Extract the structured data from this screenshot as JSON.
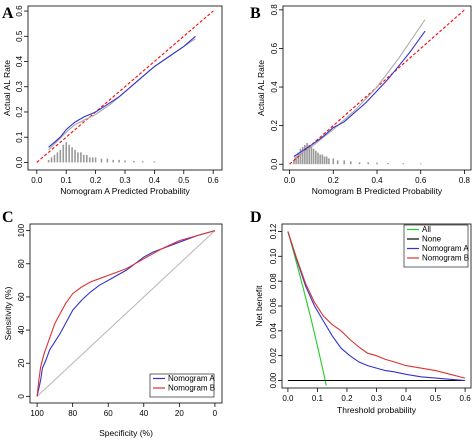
{
  "chart_data": [
    {
      "panel": "A",
      "type": "line",
      "xlabel": "Nomogram A Predicted Probability",
      "ylabel": "Actual AL Rate",
      "xlim": [
        -0.03,
        0.63
      ],
      "ylim": [
        -0.03,
        0.62
      ],
      "xticks": [
        0.0,
        0.1,
        0.2,
        0.3,
        0.4,
        0.5,
        0.6
      ],
      "yticks": [
        0.0,
        0.1,
        0.2,
        0.3,
        0.4,
        0.5,
        0.6
      ],
      "tick_labels_x": [
        "0.0",
        "0.1",
        "0.2",
        "0.3",
        "0.4",
        "0.5",
        "0.6"
      ],
      "tick_labels_y": [
        "0.0",
        "0.1",
        "0.2",
        "0.3",
        "0.4",
        "0.5",
        "0.6"
      ],
      "series": [
        {
          "role": "ideal",
          "color": "#ff0000",
          "dash": true,
          "x": [
            0.0,
            0.6
          ],
          "y": [
            0.0,
            0.6
          ]
        },
        {
          "role": "apparent",
          "color": "#aaaaaa",
          "x": [
            0.04,
            0.1,
            0.13,
            0.2,
            0.25,
            0.3,
            0.4,
            0.5,
            0.54
          ],
          "y": [
            0.05,
            0.12,
            0.15,
            0.19,
            0.23,
            0.28,
            0.38,
            0.46,
            0.49
          ]
        },
        {
          "role": "bias-corrected",
          "color": "#3333cc",
          "x": [
            0.04,
            0.08,
            0.1,
            0.13,
            0.16,
            0.2,
            0.24,
            0.28,
            0.32,
            0.36,
            0.4,
            0.45,
            0.5,
            0.54
          ],
          "y": [
            0.06,
            0.1,
            0.13,
            0.16,
            0.18,
            0.2,
            0.23,
            0.26,
            0.3,
            0.34,
            0.38,
            0.42,
            0.46,
            0.5
          ]
        }
      ],
      "rug": {
        "x": [
          0.04,
          0.05,
          0.06,
          0.07,
          0.08,
          0.09,
          0.1,
          0.11,
          0.12,
          0.13,
          0.14,
          0.15,
          0.16,
          0.17,
          0.18,
          0.19,
          0.2,
          0.22,
          0.24,
          0.26,
          0.28,
          0.3,
          0.33,
          0.36,
          0.4
        ],
        "h": [
          0.01,
          0.02,
          0.03,
          0.04,
          0.05,
          0.07,
          0.08,
          0.07,
          0.06,
          0.05,
          0.04,
          0.04,
          0.03,
          0.03,
          0.02,
          0.02,
          0.02,
          0.015,
          0.015,
          0.01,
          0.01,
          0.008,
          0.006,
          0.005,
          0.004
        ],
        "color": "#999999"
      }
    },
    {
      "panel": "B",
      "type": "line",
      "xlabel": "Nomogram B Predicted Probability",
      "ylabel": "Actual AL Rate",
      "xlim": [
        -0.03,
        0.83
      ],
      "ylim": [
        -0.03,
        0.82
      ],
      "xticks": [
        0.0,
        0.2,
        0.4,
        0.6,
        0.8
      ],
      "yticks": [
        0.0,
        0.2,
        0.4,
        0.6,
        0.8
      ],
      "tick_labels_x": [
        "0.0",
        "0.2",
        "0.4",
        "0.6",
        "0.8"
      ],
      "tick_labels_y": [
        "0.0",
        "0.2",
        "0.4",
        "0.6",
        "0.8"
      ],
      "series": [
        {
          "role": "ideal",
          "color": "#ff0000",
          "dash": true,
          "x": [
            0.0,
            0.8
          ],
          "y": [
            0.0,
            0.8
          ]
        },
        {
          "role": "apparent",
          "color": "#aaaaaa",
          "x": [
            0.02,
            0.1,
            0.2,
            0.3,
            0.4,
            0.5,
            0.62
          ],
          "y": [
            0.03,
            0.09,
            0.18,
            0.28,
            0.4,
            0.55,
            0.75
          ]
        },
        {
          "role": "bias-corrected",
          "color": "#3333cc",
          "x": [
            0.02,
            0.06,
            0.1,
            0.15,
            0.2,
            0.25,
            0.3,
            0.35,
            0.4,
            0.45,
            0.5,
            0.55,
            0.62
          ],
          "y": [
            0.04,
            0.07,
            0.1,
            0.14,
            0.19,
            0.22,
            0.27,
            0.32,
            0.38,
            0.44,
            0.51,
            0.58,
            0.69
          ]
        }
      ],
      "rug": {
        "x": [
          0.02,
          0.03,
          0.04,
          0.05,
          0.06,
          0.07,
          0.08,
          0.09,
          0.1,
          0.11,
          0.12,
          0.13,
          0.14,
          0.15,
          0.16,
          0.17,
          0.18,
          0.2,
          0.22,
          0.25,
          0.28,
          0.32,
          0.36,
          0.4,
          0.45,
          0.52,
          0.6
        ],
        "h": [
          0.02,
          0.04,
          0.06,
          0.08,
          0.09,
          0.1,
          0.11,
          0.1,
          0.09,
          0.08,
          0.07,
          0.06,
          0.05,
          0.05,
          0.04,
          0.04,
          0.03,
          0.03,
          0.02,
          0.02,
          0.015,
          0.01,
          0.01,
          0.008,
          0.006,
          0.005,
          0.004
        ],
        "color": "#999999"
      }
    },
    {
      "panel": "C",
      "type": "line",
      "xlabel": "Specificity (%)",
      "ylabel": "Sensitivity (%)",
      "xlim": [
        104,
        -4
      ],
      "ylim": [
        -4,
        104
      ],
      "xticks": [
        100,
        80,
        60,
        40,
        20,
        0
      ],
      "yticks": [
        0,
        20,
        40,
        60,
        80,
        100
      ],
      "tick_labels_x": [
        "100",
        "80",
        "60",
        "40",
        "20",
        "0"
      ],
      "tick_labels_y": [
        "0",
        "20",
        "40",
        "60",
        "80",
        "100"
      ],
      "series": [
        {
          "role": "reference",
          "color": "#bbbbbb",
          "x": [
            100,
            0
          ],
          "y": [
            0,
            100
          ]
        },
        {
          "name": "Nomogram A",
          "color": "#3333cc",
          "x": [
            100,
            99,
            98,
            97,
            95,
            93,
            90,
            87,
            84,
            80,
            75,
            70,
            65,
            60,
            55,
            50,
            45,
            40,
            35,
            30,
            20,
            10,
            0
          ],
          "y": [
            0,
            5,
            10,
            17,
            22,
            28,
            33,
            38,
            44,
            52,
            58,
            63,
            67,
            70,
            73,
            76,
            80,
            84,
            87,
            89,
            93,
            97,
            100
          ]
        },
        {
          "name": "Nomogram B",
          "color": "#dd3333",
          "x": [
            100,
            99,
            98,
            96,
            94,
            92,
            90,
            87,
            84,
            80,
            75,
            70,
            65,
            60,
            55,
            50,
            45,
            40,
            35,
            30,
            20,
            10,
            0
          ],
          "y": [
            0,
            10,
            18,
            26,
            32,
            38,
            44,
            50,
            56,
            62,
            66,
            69,
            71,
            73,
            75,
            77,
            80,
            83,
            86,
            89,
            94,
            97,
            100
          ]
        }
      ],
      "legend": {
        "position": "bottom-right",
        "entries": [
          "Nomogram A",
          "Nomogram B"
        ]
      }
    },
    {
      "panel": "D",
      "type": "line",
      "xlabel": "Threshold probability",
      "ylabel": "Net benefit",
      "xlim": [
        -0.02,
        0.62
      ],
      "ylim": [
        -0.006,
        0.126
      ],
      "xticks": [
        0.0,
        0.1,
        0.2,
        0.3,
        0.4,
        0.5,
        0.6
      ],
      "yticks": [
        0.0,
        0.02,
        0.04,
        0.06,
        0.08,
        0.1,
        0.12
      ],
      "tick_labels_x": [
        "0.0",
        "0.1",
        "0.2",
        "0.3",
        "0.4",
        "0.5",
        "0.6"
      ],
      "tick_labels_y": [
        "0.00",
        "0.02",
        "0.04",
        "0.06",
        "0.08",
        "0.10",
        "0.12"
      ],
      "series": [
        {
          "name": "All",
          "color": "#22cc22",
          "x": [
            0.0,
            0.02,
            0.04,
            0.06,
            0.08,
            0.1,
            0.12,
            0.13
          ],
          "y": [
            0.12,
            0.103,
            0.085,
            0.067,
            0.048,
            0.028,
            0.007,
            -0.004
          ]
        },
        {
          "name": "None",
          "color": "#000000",
          "x": [
            0.0,
            0.6
          ],
          "y": [
            0.0,
            0.0
          ]
        },
        {
          "name": "Nomogram A",
          "color": "#3333cc",
          "x": [
            0.0,
            0.03,
            0.06,
            0.09,
            0.12,
            0.15,
            0.18,
            0.21,
            0.24,
            0.27,
            0.3,
            0.33,
            0.36,
            0.4,
            0.45,
            0.5,
            0.55,
            0.6
          ],
          "y": [
            0.12,
            0.097,
            0.076,
            0.06,
            0.048,
            0.036,
            0.026,
            0.02,
            0.015,
            0.012,
            0.01,
            0.008,
            0.007,
            0.005,
            0.003,
            0.002,
            0.001,
            0.0
          ]
        },
        {
          "name": "Nomogram B",
          "color": "#dd3333",
          "x": [
            0.0,
            0.03,
            0.06,
            0.09,
            0.12,
            0.15,
            0.18,
            0.21,
            0.24,
            0.27,
            0.3,
            0.33,
            0.36,
            0.4,
            0.45,
            0.5,
            0.55,
            0.6
          ],
          "y": [
            0.12,
            0.098,
            0.078,
            0.063,
            0.052,
            0.045,
            0.04,
            0.033,
            0.027,
            0.022,
            0.02,
            0.017,
            0.015,
            0.012,
            0.01,
            0.008,
            0.005,
            0.002
          ]
        }
      ],
      "legend": {
        "position": "top-right",
        "entries": [
          "All",
          "None",
          "Nomogram A",
          "Nomogram B"
        ]
      }
    }
  ]
}
